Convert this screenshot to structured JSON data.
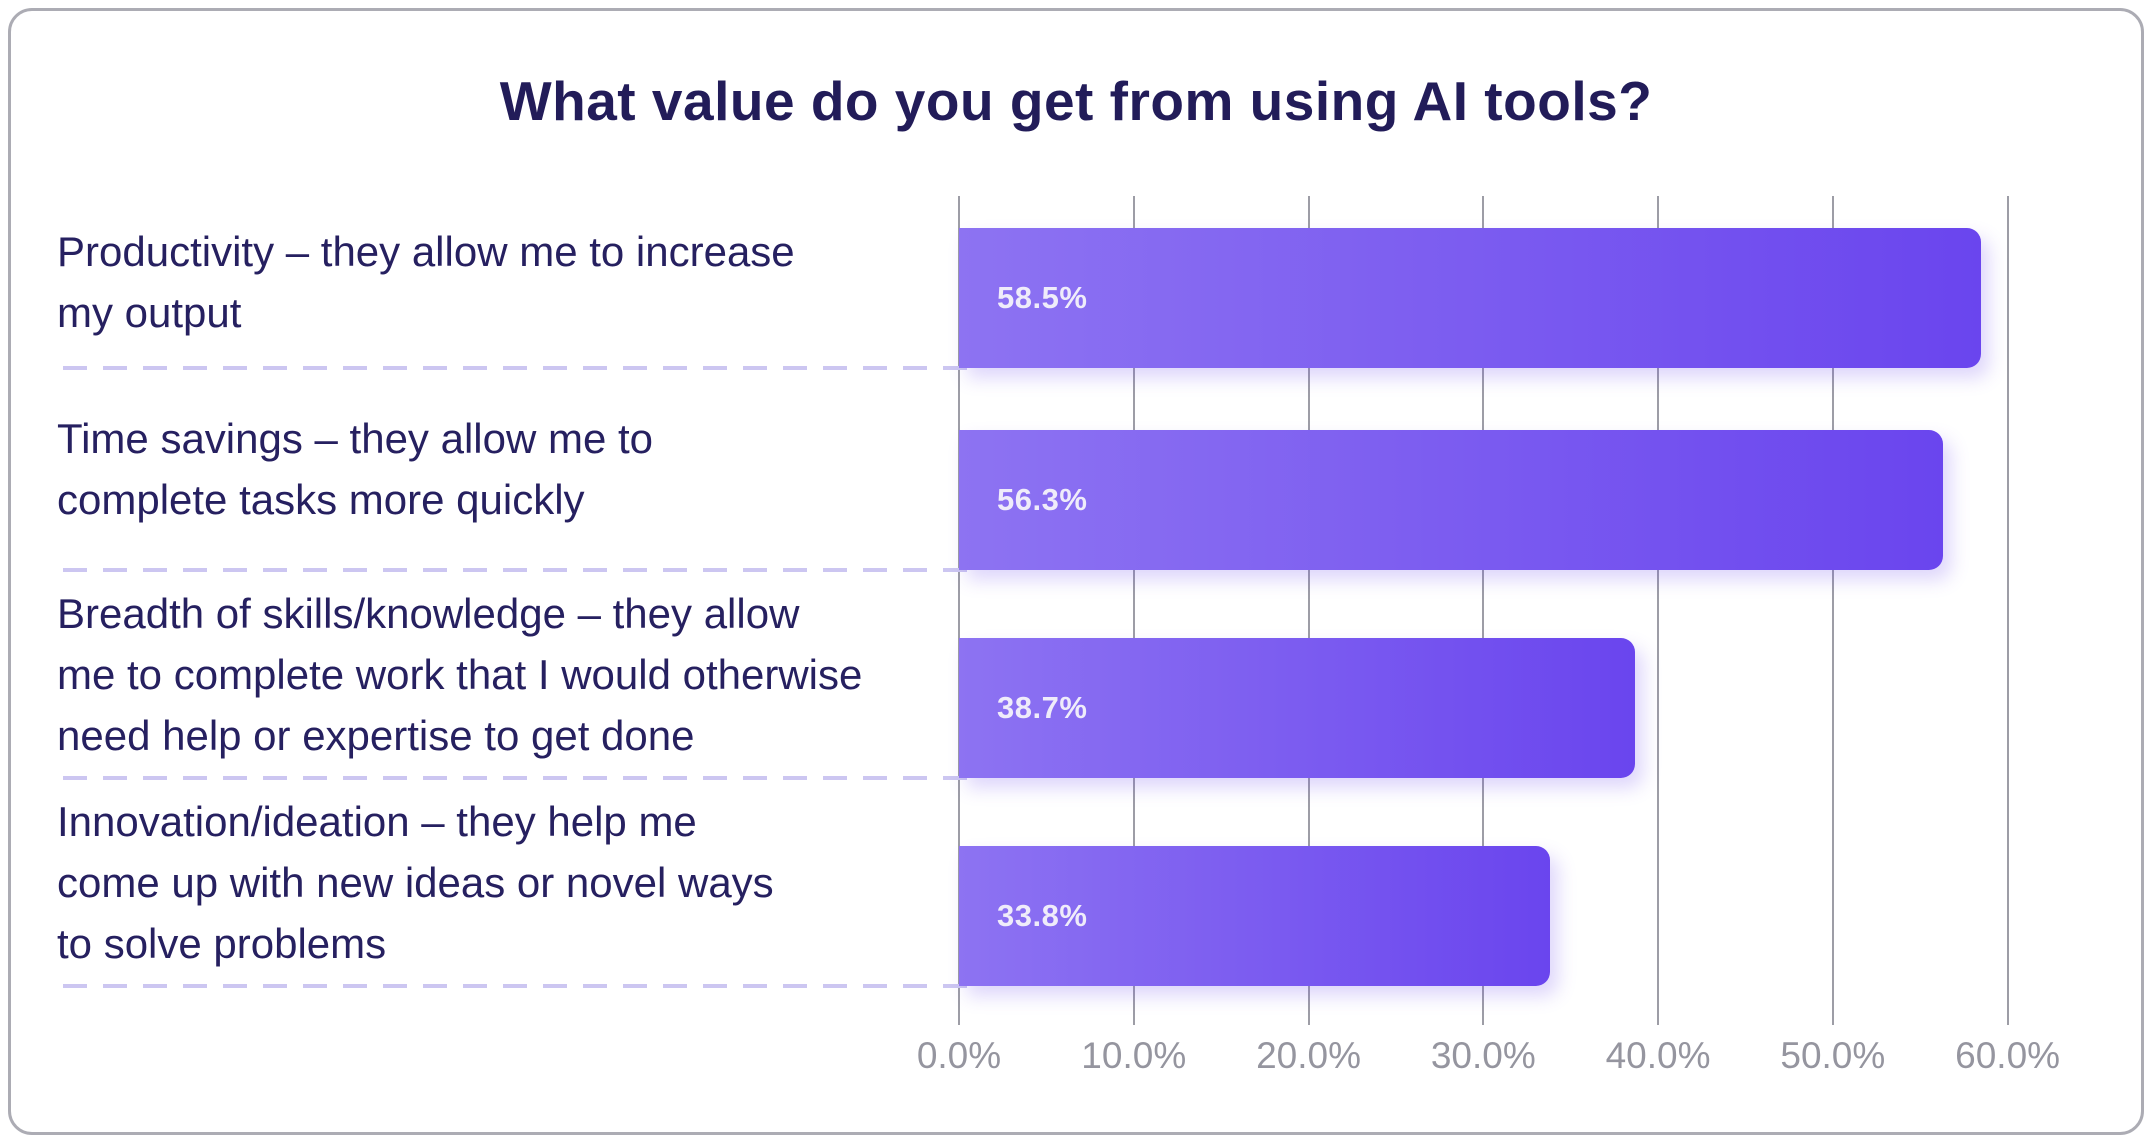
{
  "title": "What value do you get from using AI tools?",
  "chart_data": {
    "type": "bar",
    "orientation": "horizontal",
    "title": "What value do you get from using AI tools?",
    "categories": [
      "Productivity – they allow me to increase my output",
      "Time savings – they allow me to complete tasks more quickly",
      "Breadth of skills/knowledge – they allow me to complete work that I would otherwise need help or expertise to get done",
      "Innovation/ideation – they help me come up with new ideas or novel ways to solve problems"
    ],
    "values": [
      58.5,
      56.3,
      38.7,
      33.8
    ],
    "xlabel": "",
    "ylabel": "",
    "xlim": [
      0,
      64.6
    ],
    "x_tick_values": [
      0,
      10,
      20,
      30,
      40,
      50,
      60
    ],
    "x_tick_labels": [
      "0.0%",
      "10.0%",
      "20.0%",
      "30.0%",
      "40.0%",
      "50.0%",
      "60.0%"
    ],
    "grid": "vertical-only",
    "legend": "none",
    "bar_gradient": [
      "#8d73f2",
      "#6a45ee"
    ],
    "colors": {
      "title_text": "#221c59",
      "category_text": "#262060",
      "tick_text": "#95959f",
      "gridline": "#9d9da6",
      "bar_value_text": "#efecfa",
      "dashed_separator": "#ccc6f1",
      "card_border": "#acacb4",
      "background": "#ffffff"
    }
  },
  "rows": [
    {
      "label": "Productivity – they allow me to increase\nmy output",
      "value_label": "58.5%",
      "value": 58.5
    },
    {
      "label": "Time savings – they allow me to\ncomplete tasks more quickly",
      "value_label": "56.3%",
      "value": 56.3
    },
    {
      "label": "Breadth of skills/knowledge – they allow\nme to complete work that I would otherwise\nneed help or expertise to get done",
      "value_label": "38.7%",
      "value": 38.7
    },
    {
      "label": "Innovation/ideation – they help me\ncome up with new ideas or novel ways\nto solve problems",
      "value_label": "33.8%",
      "value": 33.8
    }
  ],
  "x_ticks": [
    "0.0%",
    "10.0%",
    "20.0%",
    "30.0%",
    "40.0%",
    "50.0%",
    "60.0%"
  ]
}
